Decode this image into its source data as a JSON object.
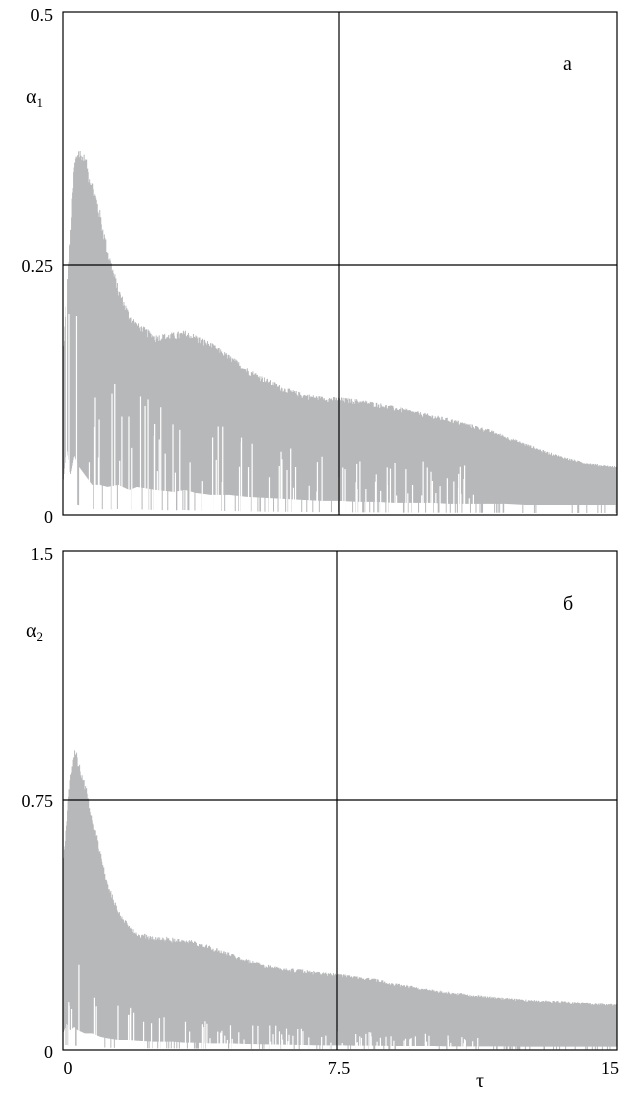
{
  "chart_data": [
    {
      "type": "area",
      "panel_label": "а",
      "ylabel": "α",
      "ylabel_subscript": "1",
      "xlabel": "",
      "ylim": [
        0,
        0.5
      ],
      "xlim": [
        0,
        15
      ],
      "y_ticks": [
        "0",
        "0.25",
        "0.5"
      ],
      "y_tick_values": [
        0,
        0.25,
        0.5
      ],
      "x_ticks": [],
      "grid": {
        "x": [
          7.5
        ],
        "y": [
          0.25
        ]
      },
      "fill_color": "#b7b8ba",
      "envelope": {
        "x": [
          0,
          0.1,
          0.2,
          0.3,
          0.4,
          0.6,
          0.8,
          1.0,
          1.2,
          1.5,
          1.8,
          2.0,
          2.5,
          3.0,
          3.3,
          3.6,
          4.0,
          4.5,
          5.0,
          5.5,
          6.0,
          6.5,
          7.0,
          7.5,
          8.0,
          8.5,
          9.0,
          9.5,
          10.0,
          10.5,
          11.0,
          11.5,
          12.0,
          12.5,
          13.0,
          13.5,
          14.0,
          14.5,
          15.0
        ],
        "upper": [
          0.15,
          0.22,
          0.28,
          0.35,
          0.365,
          0.355,
          0.33,
          0.3,
          0.265,
          0.225,
          0.2,
          0.19,
          0.178,
          0.18,
          0.182,
          0.178,
          0.17,
          0.158,
          0.145,
          0.135,
          0.126,
          0.12,
          0.117,
          0.116,
          0.114,
          0.111,
          0.107,
          0.103,
          0.099,
          0.095,
          0.09,
          0.085,
          0.078,
          0.071,
          0.064,
          0.058,
          0.053,
          0.05,
          0.048
        ],
        "lower": [
          0.03,
          0.07,
          0.04,
          0.06,
          0.05,
          0.04,
          0.03,
          0.03,
          0.028,
          0.03,
          0.025,
          0.028,
          0.025,
          0.023,
          0.025,
          0.022,
          0.02,
          0.02,
          0.018,
          0.017,
          0.016,
          0.015,
          0.014,
          0.014,
          0.013,
          0.013,
          0.012,
          0.012,
          0.012,
          0.011,
          0.011,
          0.011,
          0.011,
          0.01,
          0.01,
          0.01,
          0.01,
          0.01,
          0.01
        ]
      }
    },
    {
      "type": "area",
      "panel_label": "б",
      "ylabel": "α",
      "ylabel_subscript": "2",
      "xlabel": "τ",
      "ylim": [
        0,
        1.5
      ],
      "xlim": [
        0,
        15
      ],
      "y_ticks": [
        "0",
        "0.75",
        "1.5"
      ],
      "y_tick_values": [
        0,
        0.75,
        1.5
      ],
      "x_ticks": [
        "0",
        "7.5",
        "15"
      ],
      "x_tick_values": [
        0,
        7.5,
        15
      ],
      "grid": {
        "x": [
          7.5
        ],
        "y": [
          0.75
        ]
      },
      "fill_color": "#b7b8ba",
      "envelope": {
        "x": [
          0,
          0.1,
          0.2,
          0.3,
          0.4,
          0.6,
          0.8,
          1.0,
          1.2,
          1.5,
          1.8,
          2.0,
          2.5,
          3.0,
          3.3,
          3.6,
          4.0,
          4.5,
          5.0,
          5.5,
          6.0,
          6.5,
          7.0,
          7.5,
          8.0,
          8.5,
          9.0,
          9.5,
          10.0,
          10.5,
          11.0,
          11.5,
          12.0,
          12.5,
          13.0,
          13.5,
          14.0,
          14.5,
          15.0
        ],
        "upper": [
          0.55,
          0.7,
          0.82,
          0.9,
          0.88,
          0.8,
          0.7,
          0.6,
          0.5,
          0.42,
          0.37,
          0.35,
          0.34,
          0.335,
          0.33,
          0.325,
          0.31,
          0.29,
          0.27,
          0.255,
          0.245,
          0.24,
          0.232,
          0.228,
          0.22,
          0.212,
          0.2,
          0.19,
          0.18,
          0.173,
          0.166,
          0.16,
          0.155,
          0.15,
          0.148,
          0.145,
          0.142,
          0.14,
          0.138
        ],
        "lower": [
          0.05,
          0.08,
          0.06,
          0.07,
          0.06,
          0.05,
          0.05,
          0.04,
          0.035,
          0.03,
          0.03,
          0.028,
          0.025,
          0.025,
          0.022,
          0.022,
          0.02,
          0.02,
          0.018,
          0.017,
          0.016,
          0.015,
          0.014,
          0.014,
          0.013,
          0.013,
          0.012,
          0.012,
          0.012,
          0.011,
          0.011,
          0.011,
          0.011,
          0.01,
          0.01,
          0.01,
          0.01,
          0.01,
          0.01
        ]
      }
    }
  ]
}
